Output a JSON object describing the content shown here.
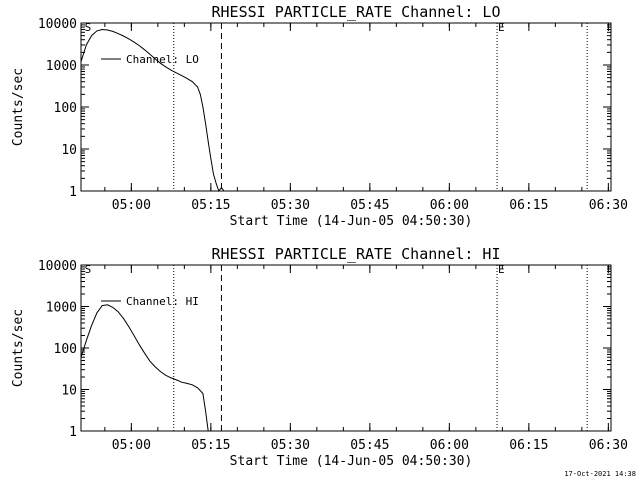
{
  "chart_data": [
    {
      "type": "line",
      "title": "RHESSI PARTICLE_RATE Channel: LO",
      "xlabel": "Start Time (14-Jun-05 04:50:30)",
      "ylabel": "Counts/sec",
      "yscale": "log",
      "ylim": [
        1,
        10000
      ],
      "xlim_minutes": [
        0,
        100
      ],
      "x_tick_labels": [
        "05:00",
        "05:15",
        "05:30",
        "05:45",
        "06:00",
        "06:15",
        "06:30"
      ],
      "x_tick_minutes": [
        9.5,
        24.5,
        39.5,
        54.5,
        69.5,
        84.5,
        99.5
      ],
      "y_tick_labels": [
        "1",
        "10",
        "100",
        "1000",
        "10000"
      ],
      "y_tick_values": [
        1,
        10,
        100,
        1000,
        10000
      ],
      "legend": [
        "Channel: LO"
      ],
      "markers": {
        "S_label": "S",
        "E_label": "E",
        "S_minute": 0.5,
        "E_minute": 78.5
      },
      "dotted_lines_minutes": [
        17.5,
        78.5,
        95.5
      ],
      "dashed_line_minute": 26.5,
      "series": [
        {
          "name": "Channel: LO",
          "x": [
            0,
            1,
            2,
            3,
            4,
            5,
            6,
            7,
            8,
            9,
            10,
            11,
            12,
            13,
            14,
            15,
            16,
            17,
            18,
            19,
            20,
            21,
            22,
            22.5,
            23,
            23.5,
            24,
            24.5,
            25,
            25.5,
            26,
            26.5,
            27
          ],
          "y": [
            1200,
            3000,
            5000,
            6500,
            7000,
            6800,
            6300,
            5600,
            4900,
            4200,
            3500,
            2900,
            2300,
            1800,
            1400,
            1100,
            900,
            750,
            650,
            560,
            480,
            400,
            300,
            200,
            100,
            40,
            15,
            6,
            2.5,
            1.5,
            1,
            1.2,
            1
          ]
        }
      ]
    },
    {
      "type": "line",
      "title": "RHESSI PARTICLE_RATE Channel: HI",
      "xlabel": "Start Time (14-Jun-05 04:50:30)",
      "ylabel": "Counts/sec",
      "yscale": "log",
      "ylim": [
        1,
        10000
      ],
      "xlim_minutes": [
        0,
        100
      ],
      "x_tick_labels": [
        "05:00",
        "05:15",
        "05:30",
        "05:45",
        "06:00",
        "06:15",
        "06:30"
      ],
      "x_tick_minutes": [
        9.5,
        24.5,
        39.5,
        54.5,
        69.5,
        84.5,
        99.5
      ],
      "y_tick_labels": [
        "1",
        "10",
        "100",
        "1000",
        "10000"
      ],
      "y_tick_values": [
        1,
        10,
        100,
        1000,
        10000
      ],
      "legend": [
        "Channel: HI"
      ],
      "markers": {
        "S_label": "S",
        "E_label": "E",
        "S_minute": 0.5,
        "E_minute": 78.5
      },
      "dotted_lines_minutes": [
        17.5,
        78.5,
        95.5
      ],
      "dashed_line_minute": 26.5,
      "series": [
        {
          "name": "Channel: HI",
          "x": [
            0,
            1,
            2,
            3,
            4,
            5,
            6,
            7,
            8,
            9,
            10,
            11,
            12,
            13,
            14,
            15,
            16,
            17,
            18,
            19,
            20,
            21,
            22,
            23,
            23.5,
            24
          ],
          "y": [
            60,
            150,
            350,
            700,
            1050,
            1100,
            950,
            750,
            520,
            330,
            200,
            120,
            75,
            48,
            35,
            27,
            22,
            19,
            17,
            15,
            14,
            13,
            11,
            8,
            3,
            1
          ]
        }
      ]
    }
  ],
  "footer": {
    "timestamp": "17-Oct-2021 14:38"
  }
}
